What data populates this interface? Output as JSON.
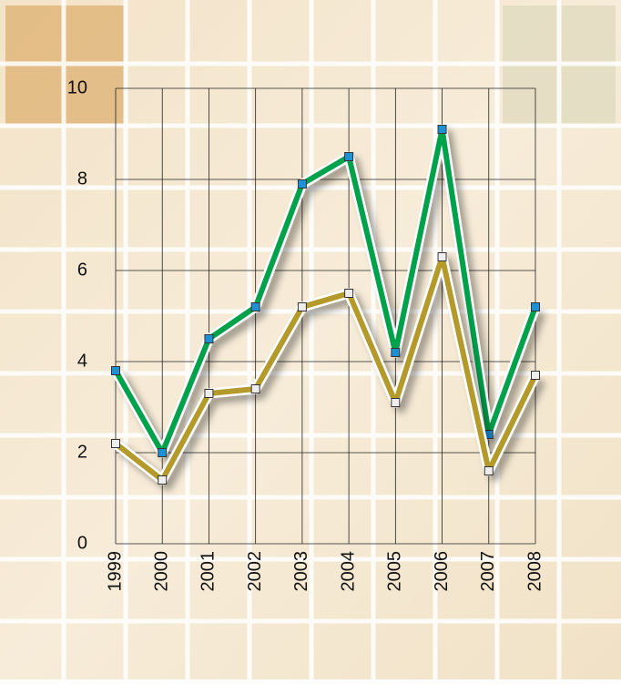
{
  "chart_data": {
    "type": "line",
    "categories": [
      "1999",
      "2000",
      "2001",
      "2002",
      "2003",
      "2004",
      "2005",
      "2006",
      "2007",
      "2008"
    ],
    "series": [
      {
        "color": "#00a14b",
        "marker_color": "#1e90d6",
        "values": [
          3.8,
          2.0,
          4.5,
          5.2,
          7.9,
          8.5,
          4.2,
          9.1,
          2.4,
          5.2
        ]
      },
      {
        "color": "#b39a2c",
        "marker_color": "#eeeeee",
        "values": [
          2.2,
          1.4,
          3.3,
          3.4,
          5.2,
          5.5,
          3.1,
          6.3,
          1.6,
          3.7
        ]
      }
    ],
    "ylim": [
      0,
      10
    ],
    "yticks": [
      0,
      2,
      4,
      6,
      8,
      10
    ],
    "grid": true
  }
}
